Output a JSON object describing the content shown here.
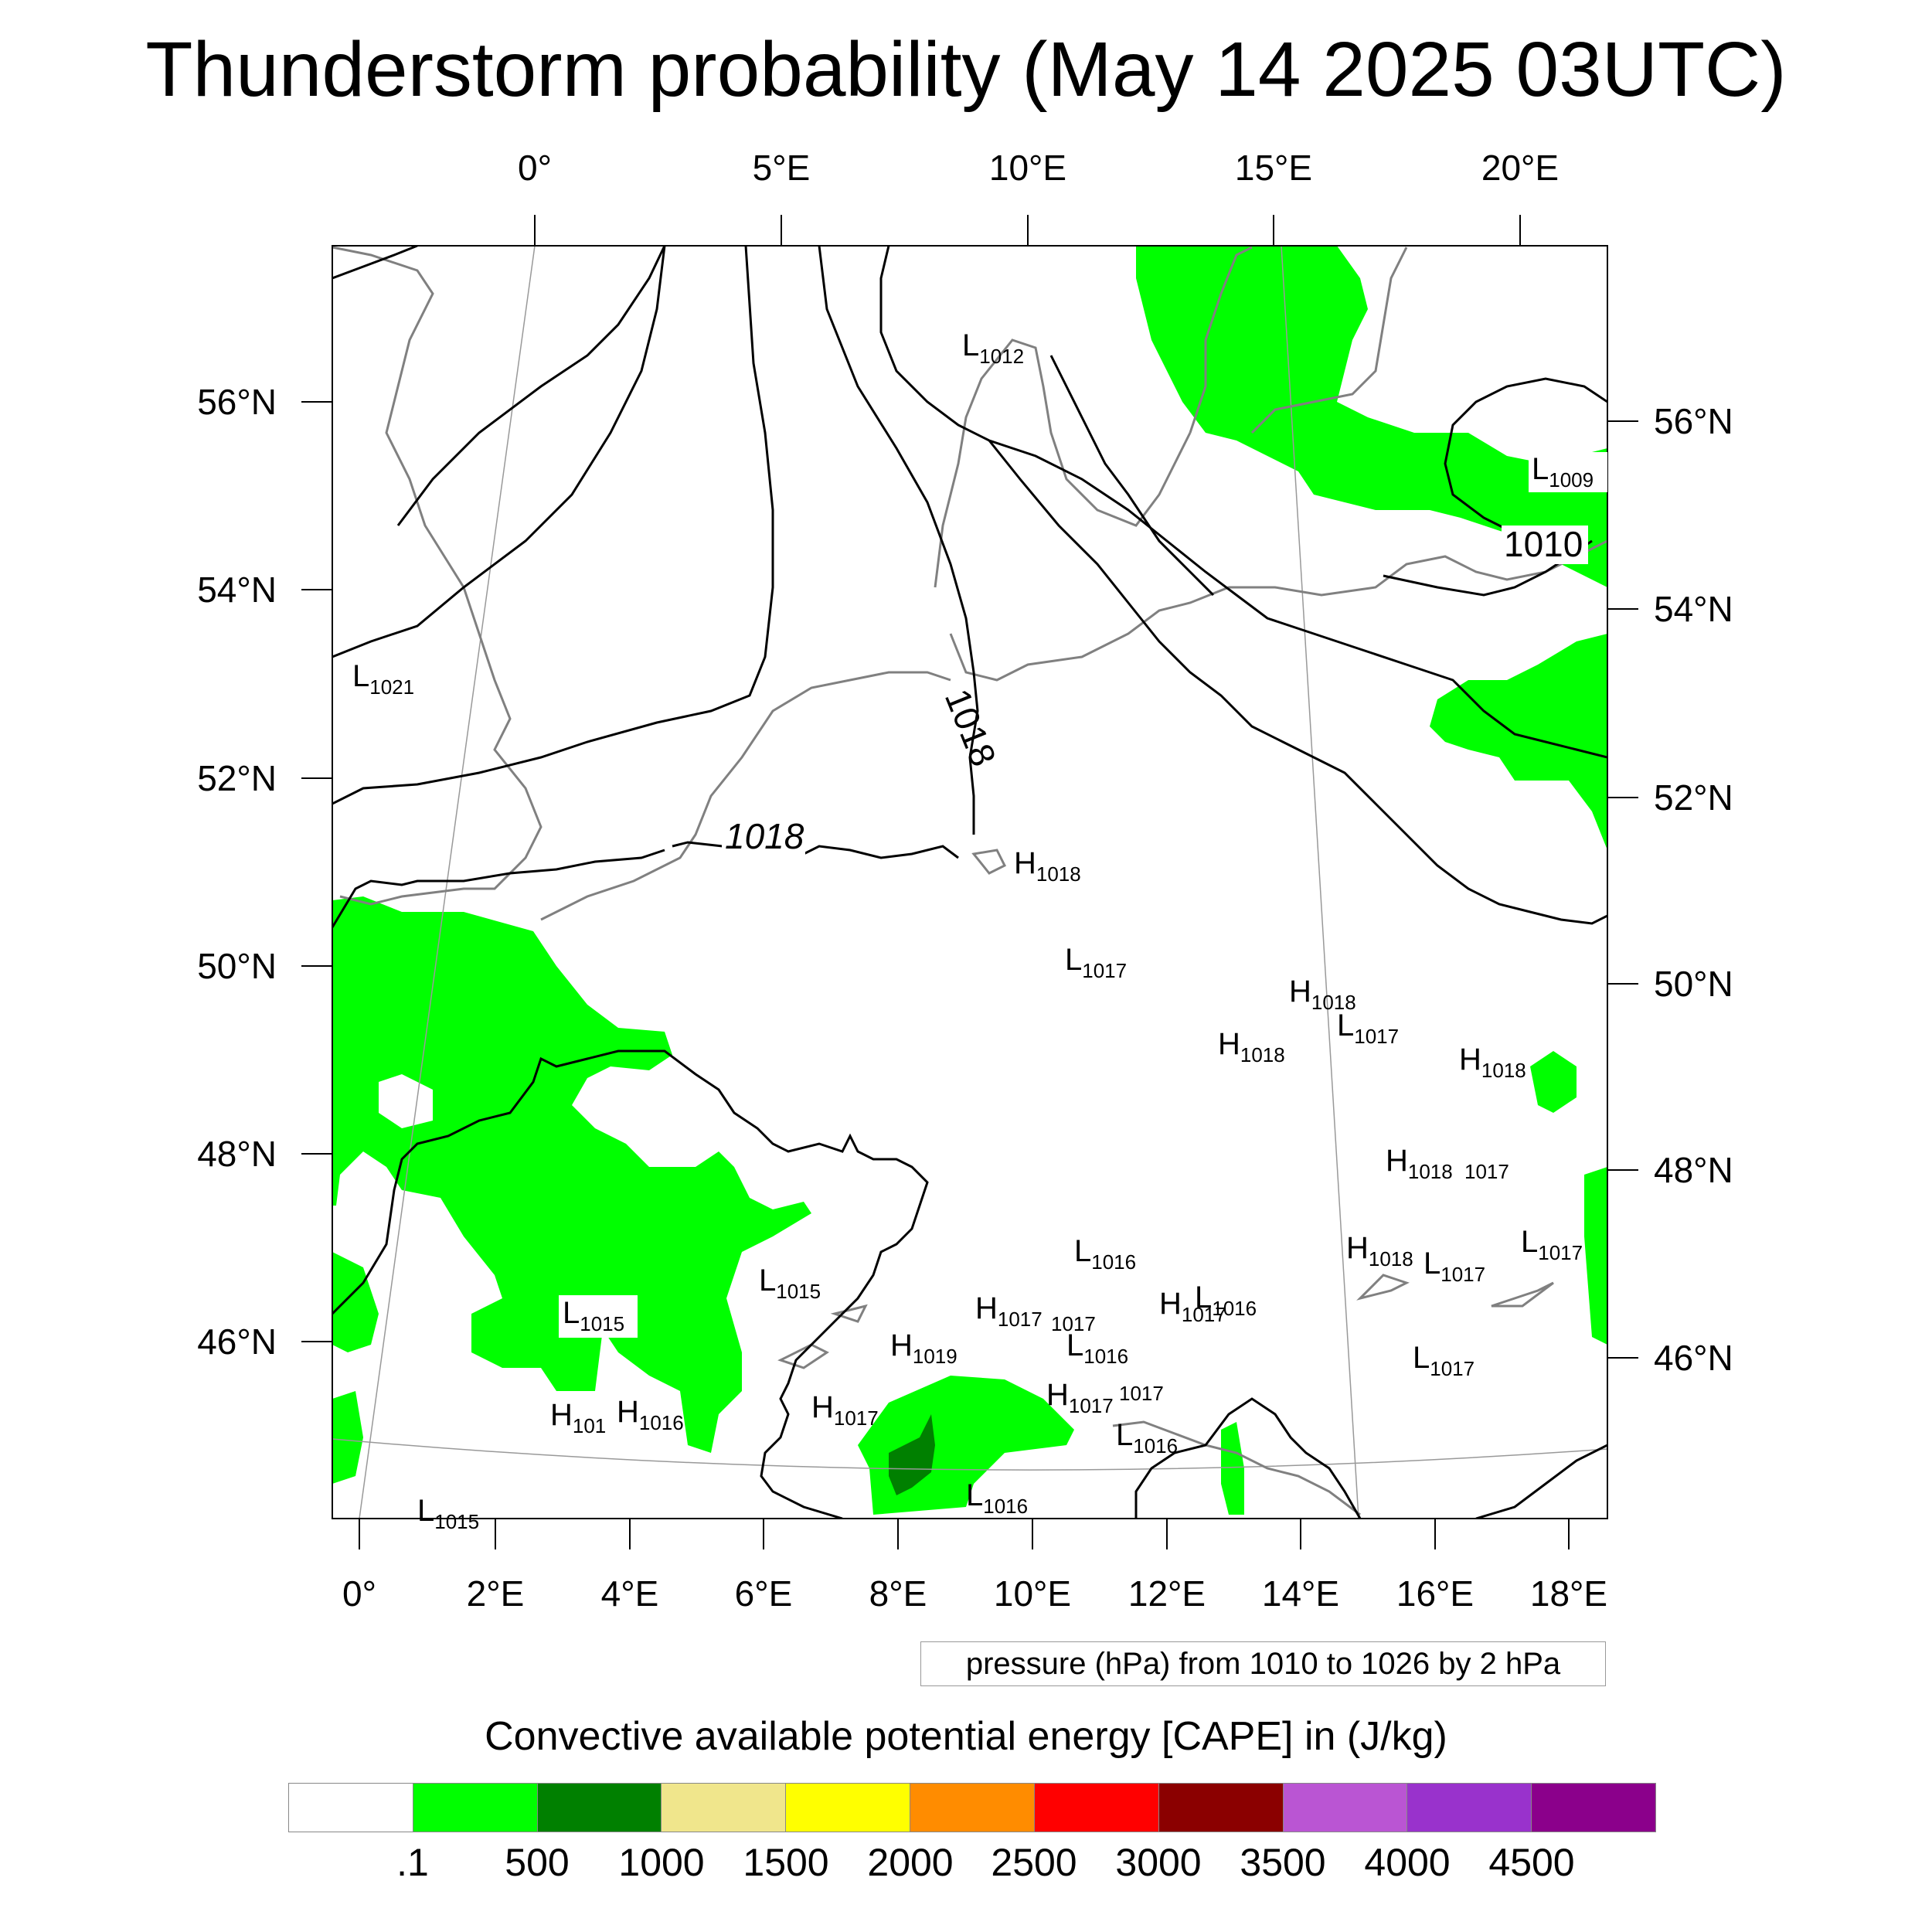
{
  "title": "Thunderstorm probability (May 14 2025 03UTC)",
  "top_axis": {
    "labels": [
      "0°",
      "5°E",
      "10°E",
      "15°E",
      "20°E"
    ]
  },
  "bottom_axis": {
    "labels": [
      "0°",
      "2°E",
      "4°E",
      "6°E",
      "8°E",
      "10°E",
      "12°E",
      "14°E",
      "16°E",
      "18°E"
    ]
  },
  "left_axis": {
    "labels": [
      "56°N",
      "54°N",
      "52°N",
      "50°N",
      "48°N",
      "46°N"
    ]
  },
  "right_axis": {
    "labels": [
      "56°N",
      "54°N",
      "52°N",
      "50°N",
      "48°N",
      "46°N"
    ]
  },
  "isobar_labels": [
    "1010",
    "1018",
    "1018"
  ],
  "pressure_centers": [
    {
      "kind": "L",
      "value": "1012"
    },
    {
      "kind": "L",
      "value": "1009"
    },
    {
      "kind": "L",
      "value": "1021"
    },
    {
      "kind": "H",
      "value": "1018"
    },
    {
      "kind": "L",
      "value": "1017"
    },
    {
      "kind": "H",
      "value": "1018"
    },
    {
      "kind": "L",
      "value": "1017"
    },
    {
      "kind": "H",
      "value": "1018"
    },
    {
      "kind": "H",
      "value": "1018"
    },
    {
      "kind": "H",
      "value": "1018"
    },
    {
      "kind": "",
      "value": "1017"
    },
    {
      "kind": "H",
      "value": "1018"
    },
    {
      "kind": "L",
      "value": "1017"
    },
    {
      "kind": "L",
      "value": "1017"
    },
    {
      "kind": "L",
      "value": "1016"
    },
    {
      "kind": "L",
      "value": "1015"
    },
    {
      "kind": "L",
      "value": "1015"
    },
    {
      "kind": "H",
      "value": "1017"
    },
    {
      "kind": "",
      "value": "1017"
    },
    {
      "kind": "H",
      "value": "1019"
    },
    {
      "kind": "L",
      "value": "1016"
    },
    {
      "kind": "H",
      "value": "1017"
    },
    {
      "kind": "L",
      "value": "1016"
    },
    {
      "kind": "H",
      "value": "101"
    },
    {
      "kind": "H",
      "value": "1016"
    },
    {
      "kind": "H",
      "value": "1017"
    },
    {
      "kind": "H",
      "value": "1017"
    },
    {
      "kind": "",
      "value": "1017"
    },
    {
      "kind": "L",
      "value": "1016"
    },
    {
      "kind": "L",
      "value": "1017"
    },
    {
      "kind": "L",
      "value": "1016"
    },
    {
      "kind": "L",
      "value": "1015"
    }
  ],
  "legend_note": "pressure (hPa) from 1010 to 1026 by 2 hPa",
  "colorbar": {
    "title": "Convective available potential energy [CAPE] in (J/kg)",
    "colors": [
      "#ffffff",
      "#00ff00",
      "#008000",
      "#f0e68c",
      "#ffff00",
      "#ff8c00",
      "#ff0000",
      "#8b0000",
      "#ba55d3",
      "#9932cc",
      "#8b008b"
    ],
    "labels": [
      ".1",
      "500",
      "1000",
      "1500",
      "2000",
      "2500",
      "3000",
      "3500",
      "4000",
      "4500"
    ]
  }
}
